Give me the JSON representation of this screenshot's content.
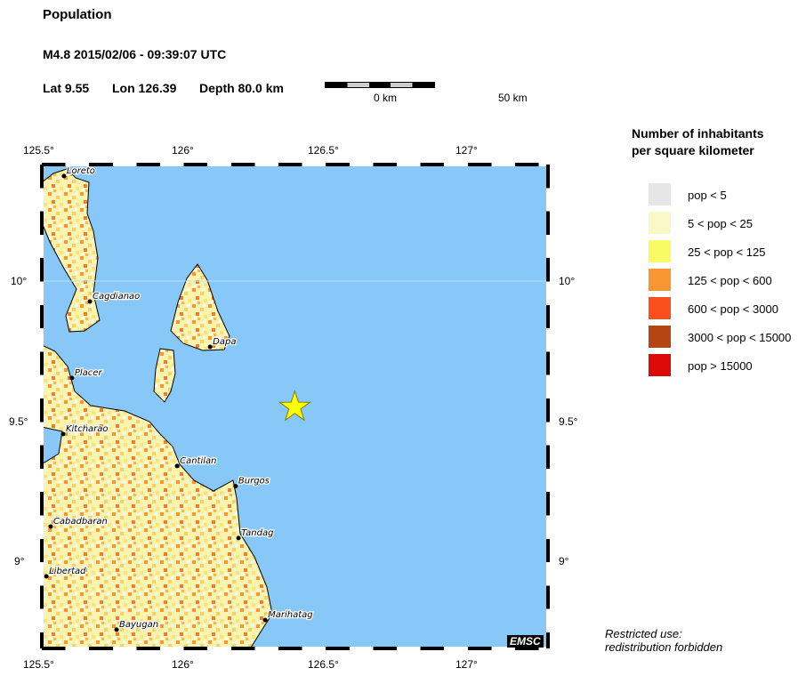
{
  "header": {
    "title": "Population",
    "event": "M4.8  2015/02/06 - 09:39:07 UTC",
    "lat_label": "Lat  9.55",
    "lon_label": "Lon 126.39",
    "depth_label": "Depth  80.0 km"
  },
  "scale_bar": {
    "start": "0 km",
    "end": "50 km"
  },
  "map": {
    "extent": {
      "lon": [
        125.5,
        127.28
      ],
      "lat": [
        8.69,
        10.42
      ]
    },
    "lon_ticks": [
      "125.5°",
      "126°",
      "126.5°",
      "127°"
    ],
    "lat_ticks": [
      "10°",
      "9.5°",
      "9°"
    ],
    "water_color": "#87c8f8",
    "epicenter": {
      "lat": 9.55,
      "lon": 126.39,
      "color": "#ffff00"
    },
    "cities": [
      {
        "name": "Loreto",
        "lon": 125.578,
        "lat": 10.375
      },
      {
        "name": "Cagdianao",
        "lon": 125.669,
        "lat": 9.927
      },
      {
        "name": "Dapa",
        "lon": 126.092,
        "lat": 9.765
      },
      {
        "name": "Placer",
        "lon": 125.606,
        "lat": 9.654
      },
      {
        "name": "Kitcharao",
        "lon": 125.575,
        "lat": 9.454
      },
      {
        "name": "Cantilan",
        "lon": 125.976,
        "lat": 9.34
      },
      {
        "name": "Burgos",
        "lon": 126.182,
        "lat": 9.268
      },
      {
        "name": "Cabadbaran",
        "lon": 125.531,
        "lat": 9.124
      },
      {
        "name": "Tandag",
        "lon": 126.192,
        "lat": 9.083
      },
      {
        "name": "Libertad",
        "lon": 125.516,
        "lat": 8.946
      },
      {
        "name": "Marihatag",
        "lon": 126.286,
        "lat": 8.79
      },
      {
        "name": "Bayugan",
        "lon": 125.763,
        "lat": 8.756
      }
    ],
    "logo": "EMSC"
  },
  "legend": {
    "title_line1": "Number of inhabitants",
    "title_line2": "per square kilometer",
    "items": [
      {
        "label": "pop < 5",
        "color": "#e6e6e6"
      },
      {
        "label": "5 < pop < 25",
        "color": "#fbf8c8"
      },
      {
        "label": "25 < pop < 125",
        "color": "#fafa64"
      },
      {
        "label": "125 < pop < 600",
        "color": "#fa9632"
      },
      {
        "label": "600 < pop < 3000",
        "color": "#fa501e"
      },
      {
        "label": "3000 < pop < 15000",
        "color": "#b44614"
      },
      {
        "label": "pop > 15000",
        "color": "#dc0a0a"
      }
    ]
  },
  "footer": {
    "line1": "Restricted use:",
    "line2": "redistribution forbidden"
  }
}
